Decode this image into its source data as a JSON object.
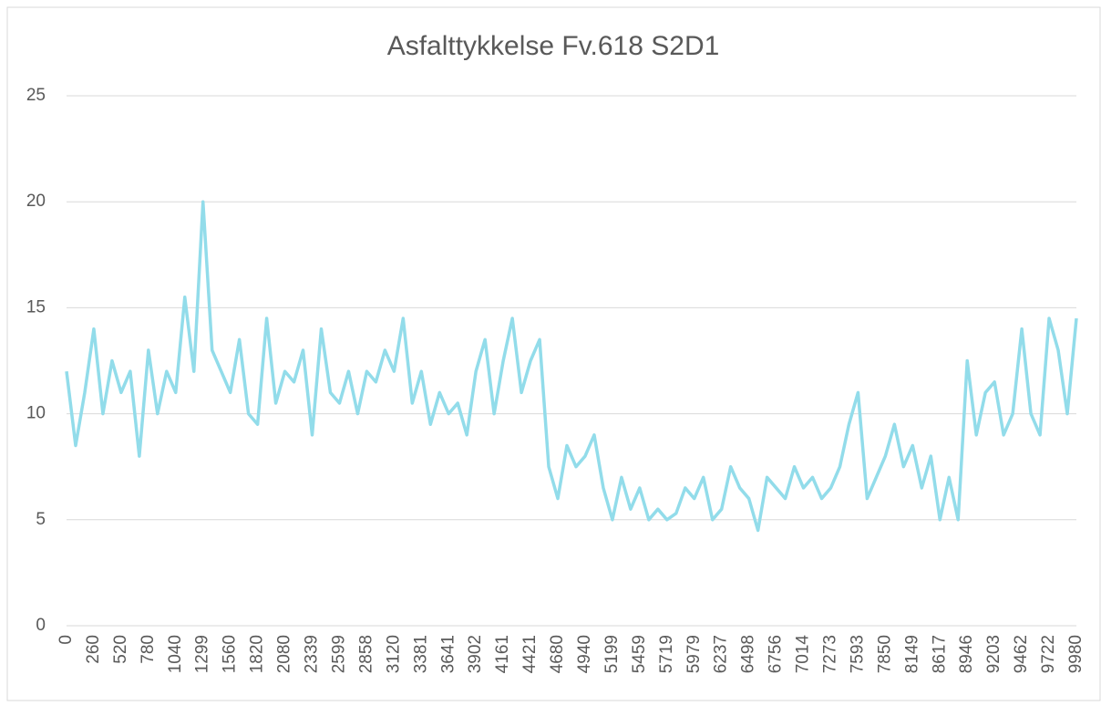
{
  "chart_data": {
    "type": "line",
    "title": "Asfalttykkelse Fv.618 S2D1",
    "categories": [
      "0",
      null,
      null,
      "260",
      null,
      null,
      "520",
      null,
      null,
      "780",
      null,
      null,
      "1040",
      null,
      null,
      "1299",
      null,
      null,
      "1560",
      null,
      null,
      "1820",
      null,
      null,
      "2080",
      null,
      null,
      "2339",
      null,
      null,
      "2599",
      null,
      null,
      "2858",
      null,
      null,
      "3120",
      null,
      null,
      "3381",
      null,
      null,
      "3641",
      null,
      null,
      "3902",
      null,
      null,
      "4161",
      null,
      null,
      "4421",
      null,
      null,
      "4680",
      null,
      null,
      "4940",
      null,
      null,
      "5199",
      null,
      null,
      "5459",
      null,
      null,
      "5719",
      null,
      null,
      "5979",
      null,
      null,
      "6237",
      null,
      null,
      "6498",
      null,
      null,
      "6756",
      null,
      null,
      "7014",
      null,
      null,
      "7273",
      null,
      null,
      "7593",
      null,
      null,
      "7850",
      null,
      null,
      "8149",
      null,
      null,
      "8617",
      null,
      null,
      "8946",
      null,
      null,
      "9203",
      null,
      null,
      "9462",
      null,
      null,
      "9722",
      null,
      null,
      "9980"
    ],
    "series": [
      {
        "name": "Asfalttykkelse",
        "color": "#92dcea",
        "values": [
          12,
          8.5,
          11,
          14,
          10,
          12.5,
          11,
          12,
          8,
          13,
          10,
          12,
          11,
          15.5,
          12,
          20,
          13,
          12,
          11,
          13.5,
          10,
          9.5,
          14.5,
          10.5,
          12,
          11.5,
          13,
          9,
          14,
          11,
          10.5,
          12,
          10,
          12,
          11.5,
          13,
          12,
          14.5,
          10.5,
          12,
          9.5,
          11,
          10,
          10.5,
          9,
          12,
          13.5,
          10,
          12.5,
          14.5,
          11,
          12.5,
          13.5,
          7.5,
          6,
          8.5,
          7.5,
          8,
          9,
          6.5,
          5,
          7,
          5.5,
          6.5,
          5,
          5.5,
          5,
          5.3,
          6.5,
          6,
          7,
          5,
          5.5,
          7.5,
          6.5,
          6,
          4.5,
          7,
          6.5,
          6,
          7.5,
          6.5,
          7,
          6,
          6.5,
          7.5,
          9.5,
          11,
          6,
          7,
          8,
          9.5,
          7.5,
          8.5,
          6.5,
          8,
          5,
          7,
          5,
          12.5,
          9,
          11,
          11.5,
          9,
          10,
          14,
          10,
          9,
          14.5,
          13,
          10,
          14.5
        ]
      }
    ],
    "ylim": [
      0,
      25
    ],
    "yticks": [
      0,
      5,
      10,
      15,
      20,
      25
    ],
    "grid": true
  }
}
